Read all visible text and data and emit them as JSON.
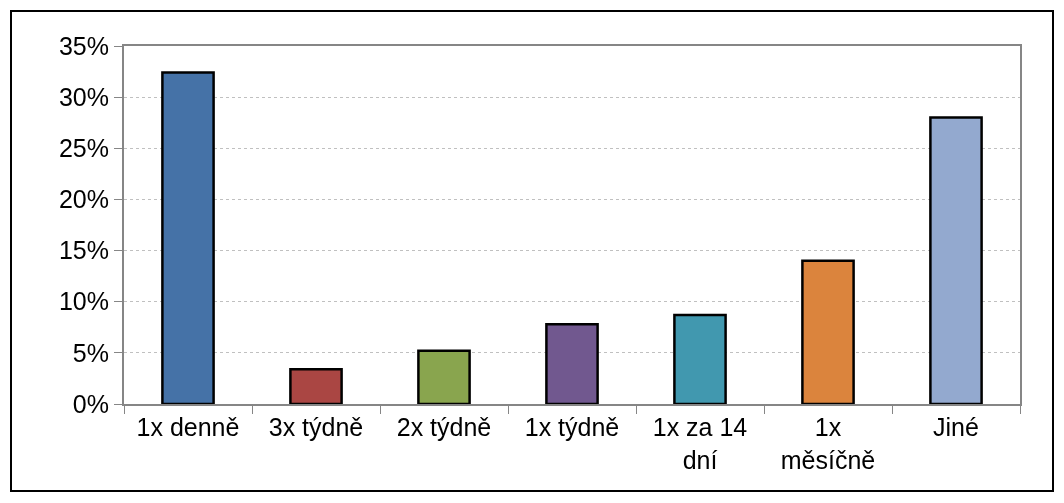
{
  "chart_data": {
    "type": "bar",
    "categories": [
      "1x denně",
      "3x týdně",
      "2x týdně",
      "1x týdně",
      "1x za 14 dní",
      "1x měsíčně",
      "Jiné"
    ],
    "values": [
      32.4,
      3.4,
      5.2,
      7.8,
      8.7,
      14.0,
      28.0
    ],
    "colors": [
      "#4572a7",
      "#aa4643",
      "#89a54e",
      "#71588f",
      "#4198af",
      "#db843d",
      "#93a9cf"
    ],
    "ylim": [
      0,
      35
    ],
    "yticks": [
      {
        "value": 0,
        "label": "0%"
      },
      {
        "value": 5,
        "label": "5%"
      },
      {
        "value": 10,
        "label": "10%"
      },
      {
        "value": 15,
        "label": "15%"
      },
      {
        "value": 20,
        "label": "20%"
      },
      {
        "value": 25,
        "label": "25%"
      },
      {
        "value": 30,
        "label": "30%"
      },
      {
        "value": 35,
        "label": "35%"
      }
    ],
    "grid": "y"
  }
}
